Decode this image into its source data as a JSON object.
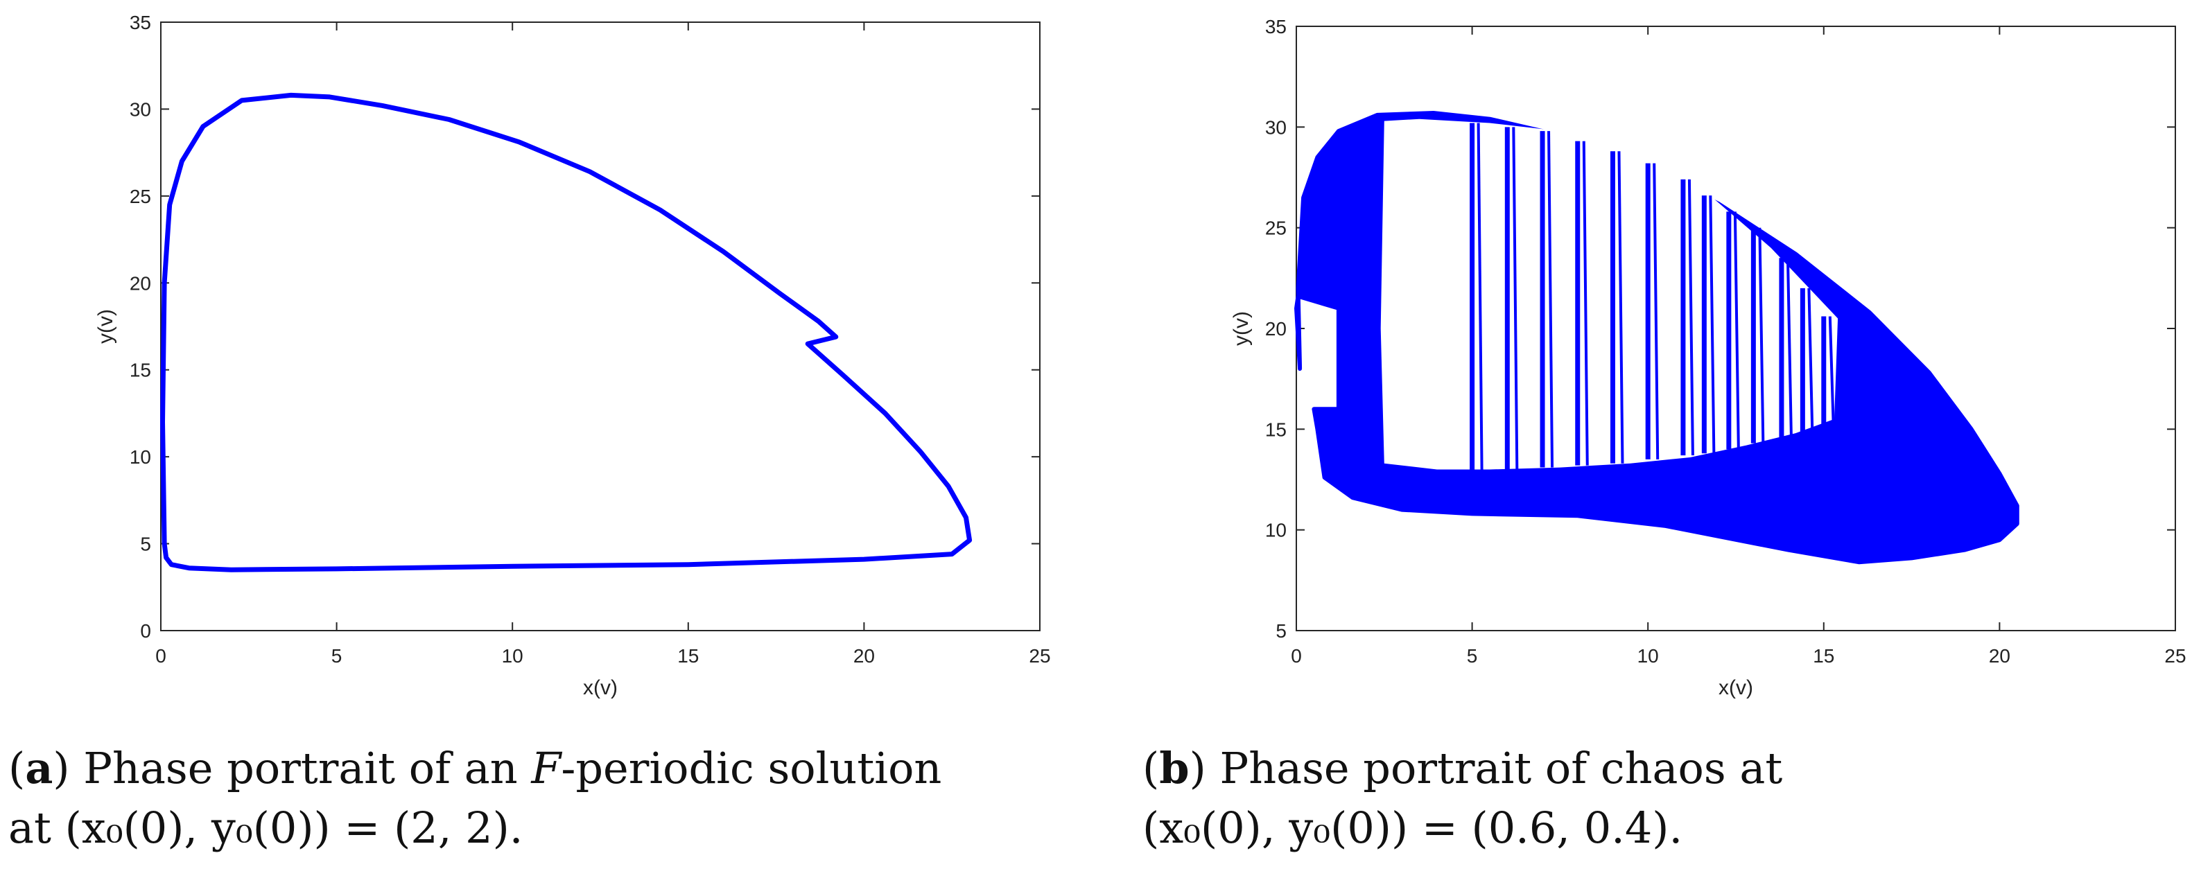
{
  "colors": {
    "line": "#0000ff",
    "axis": "#262626",
    "text": "#222222"
  },
  "captions": [
    {
      "label": "a",
      "line1_text": " Phase portrait of an ",
      "line1_italic": "F",
      "line1_tail": "-periodic solution",
      "line2": "at (x₀(0), y₀(0)) = (2, 2)."
    },
    {
      "label": "b",
      "line1_text": " Phase portrait of chaos at",
      "line1_italic": "",
      "line1_tail": "",
      "line2": "(x₀(0), y₀(0)) = (0.6, 0.4)."
    }
  ],
  "chart_data": [
    {
      "type": "line",
      "title": "",
      "xlabel": "x(v)",
      "ylabel": "y(v)",
      "xlim": [
        0,
        25
      ],
      "ylim": [
        0,
        35
      ],
      "xticks": [
        0,
        5,
        10,
        15,
        20,
        25
      ],
      "yticks": [
        0,
        5,
        10,
        15,
        20,
        25,
        30,
        35
      ],
      "grid": false,
      "series": [
        {
          "x": [
            0.1,
            0.05,
            0.1,
            0.25,
            0.6,
            1.2,
            2.3,
            3.7,
            4.8,
            6.3,
            8.2,
            10.2,
            12.2,
            14.2,
            16.0,
            17.6,
            18.7,
            19.2,
            18.4,
            19.4,
            20.6,
            21.6,
            22.4,
            22.9,
            23.0,
            22.5,
            20.0,
            15.0,
            10.0,
            5.0,
            2.0,
            0.8,
            0.3,
            0.15,
            0.1
          ],
          "y": [
            5.0,
            12.0,
            20.0,
            24.5,
            27.0,
            29.0,
            30.5,
            30.8,
            30.7,
            30.2,
            29.4,
            28.1,
            26.4,
            24.2,
            21.8,
            19.4,
            17.8,
            16.9,
            16.5,
            14.7,
            12.5,
            10.3,
            8.3,
            6.5,
            5.2,
            4.4,
            4.1,
            3.8,
            3.7,
            3.55,
            3.5,
            3.6,
            3.8,
            4.2,
            5.0
          ]
        }
      ]
    },
    {
      "type": "line",
      "title": "",
      "xlabel": "x(v)",
      "ylabel": "y(v)",
      "xlim": [
        0,
        25
      ],
      "ylim": [
        5,
        35
      ],
      "xticks": [
        0,
        5,
        10,
        15,
        20,
        25
      ],
      "yticks": [
        5,
        10,
        15,
        20,
        25,
        30,
        35
      ],
      "grid": false,
      "outline_x": [
        0.1,
        0.05,
        0.2,
        0.6,
        1.2,
        2.3,
        3.9,
        5.5,
        7.5,
        9.7,
        12.0,
        14.2,
        16.3,
        18.0,
        19.2,
        20.0,
        20.5,
        20.5,
        20.0,
        19.0,
        17.5,
        16.0,
        14.0,
        10.5,
        8.0,
        5.0,
        3.0,
        1.6,
        0.8,
        0.6,
        0.5,
        1.2,
        1.2,
        0.05,
        0.0,
        0.1
      ],
      "outline_y": [
        18.0,
        22.0,
        26.5,
        28.5,
        29.8,
        30.6,
        30.7,
        30.4,
        29.6,
        28.2,
        26.2,
        23.7,
        20.8,
        17.8,
        15.0,
        12.8,
        11.2,
        10.3,
        9.5,
        9.0,
        8.6,
        8.4,
        9.0,
        10.2,
        10.7,
        10.8,
        11.0,
        11.6,
        12.6,
        15.0,
        16.0,
        16.0,
        21.0,
        21.6,
        21.0,
        18.0
      ],
      "hollow_x": [
        2.5,
        4.0,
        5.5,
        7.5,
        9.5,
        11.2,
        12.8,
        14.2,
        15.3,
        15.4,
        13.5,
        11.5,
        9.5,
        7.5,
        5.5,
        3.5,
        2.5,
        2.4,
        2.5
      ],
      "hollow_y": [
        13.3,
        13.0,
        13.0,
        13.1,
        13.3,
        13.6,
        14.2,
        14.8,
        15.5,
        20.5,
        24.0,
        27.0,
        29.3,
        29.8,
        30.2,
        30.4,
        30.3,
        20.0,
        13.3
      ],
      "spans": [
        [
          5.0,
          13.0,
          30.2
        ],
        [
          6.0,
          13.0,
          30.0
        ],
        [
          7.0,
          13.1,
          29.8
        ],
        [
          8.0,
          13.2,
          29.3
        ],
        [
          9.0,
          13.3,
          28.8
        ],
        [
          10.0,
          13.5,
          28.2
        ],
        [
          11.0,
          13.7,
          27.4
        ],
        [
          11.6,
          13.8,
          26.6
        ],
        [
          12.3,
          14.0,
          25.8
        ],
        [
          13.0,
          14.3,
          25.0
        ],
        [
          13.8,
          14.6,
          23.5
        ],
        [
          14.4,
          14.8,
          22.0
        ],
        [
          15.0,
          15.1,
          20.6
        ]
      ]
    }
  ]
}
